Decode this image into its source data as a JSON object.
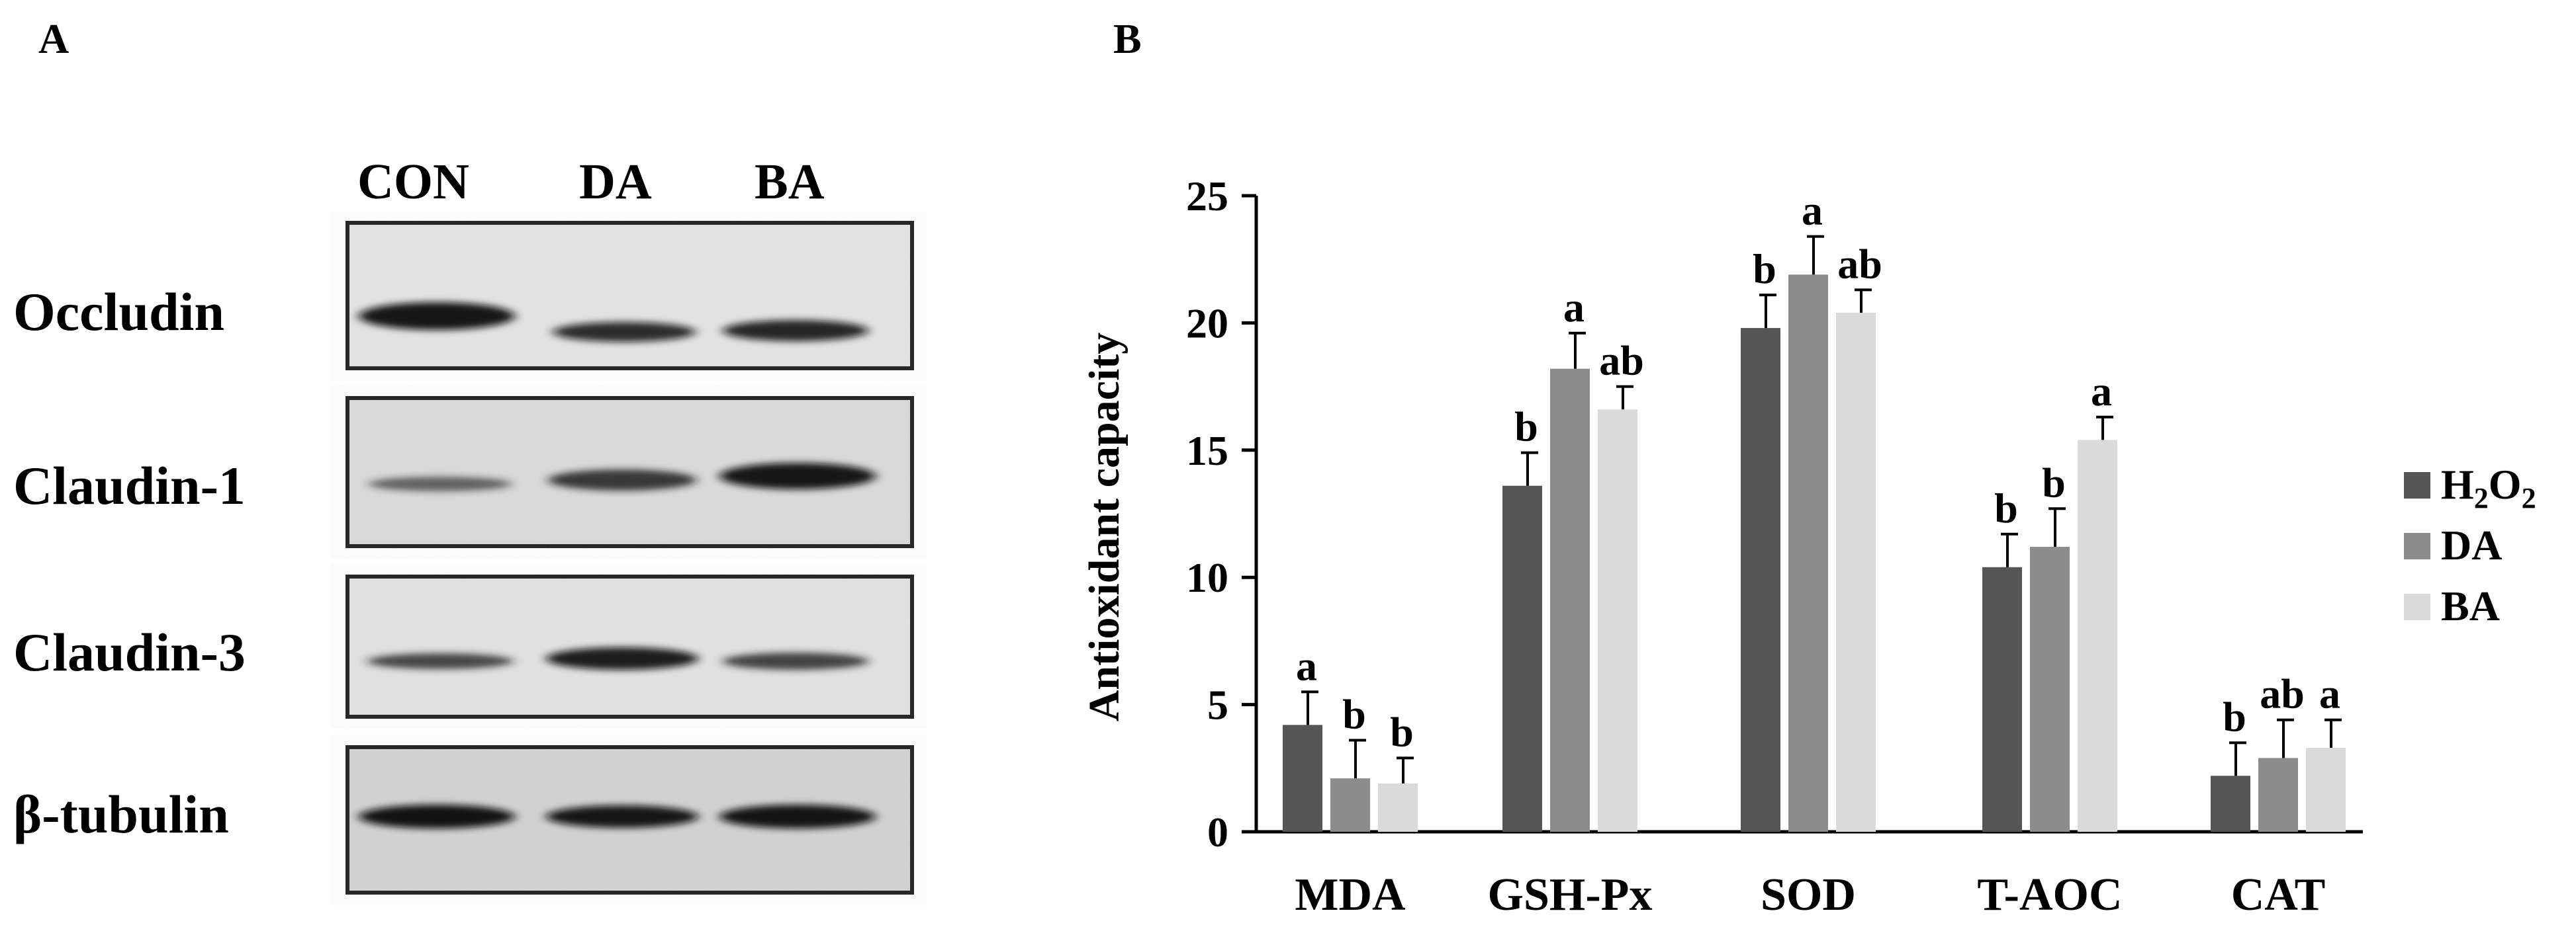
{
  "panel_a": {
    "letter": "A",
    "lanes": [
      "CON",
      "DA",
      "BA"
    ],
    "blots": [
      {
        "label": "Occludin",
        "intensity": [
          0.95,
          0.8,
          0.85
        ]
      },
      {
        "label": "Claudin-1",
        "intensity": [
          0.55,
          0.75,
          0.92
        ]
      },
      {
        "label": "Claudin-3",
        "intensity": [
          0.7,
          0.88,
          0.72
        ]
      },
      {
        "label": "β-tubulin",
        "intensity": [
          0.95,
          0.93,
          0.94
        ]
      }
    ]
  },
  "chart_data": {
    "panel_letter": "B",
    "type": "bar",
    "categories": [
      "MDA",
      "GSH-Px",
      "SOD",
      "T-AOC",
      "CAT"
    ],
    "series": [
      {
        "name": "H2O2",
        "color": "#555555",
        "values": [
          4.2,
          13.6,
          19.8,
          10.4,
          2.2
        ],
        "errors": [
          1.3,
          1.3,
          1.3,
          1.3,
          1.3
        ],
        "letters": [
          "a",
          "b",
          "b",
          "b",
          "b"
        ]
      },
      {
        "name": "DA",
        "color": "#8c8c8c",
        "values": [
          2.1,
          18.2,
          21.9,
          11.2,
          2.9
        ],
        "errors": [
          1.5,
          1.4,
          1.5,
          1.5,
          1.5
        ],
        "letters": [
          "b",
          "a",
          "a",
          "b",
          "ab"
        ]
      },
      {
        "name": "BA",
        "color": "#dadada",
        "values": [
          1.9,
          16.6,
          20.4,
          15.4,
          3.3
        ],
        "errors": [
          1.0,
          0.9,
          0.9,
          0.9,
          1.1
        ],
        "letters": [
          "b",
          "ab",
          "ab",
          "a",
          "a"
        ]
      }
    ],
    "ylabel": "Antioxidant capacity",
    "xlabel": "",
    "ylim": [
      0,
      25
    ],
    "yticks": [
      "0",
      "5",
      "10",
      "15",
      "20",
      "25"
    ],
    "legend_position": "right",
    "legend_labels": [
      "H",
      "2",
      "O",
      "2",
      "DA",
      "BA"
    ]
  }
}
